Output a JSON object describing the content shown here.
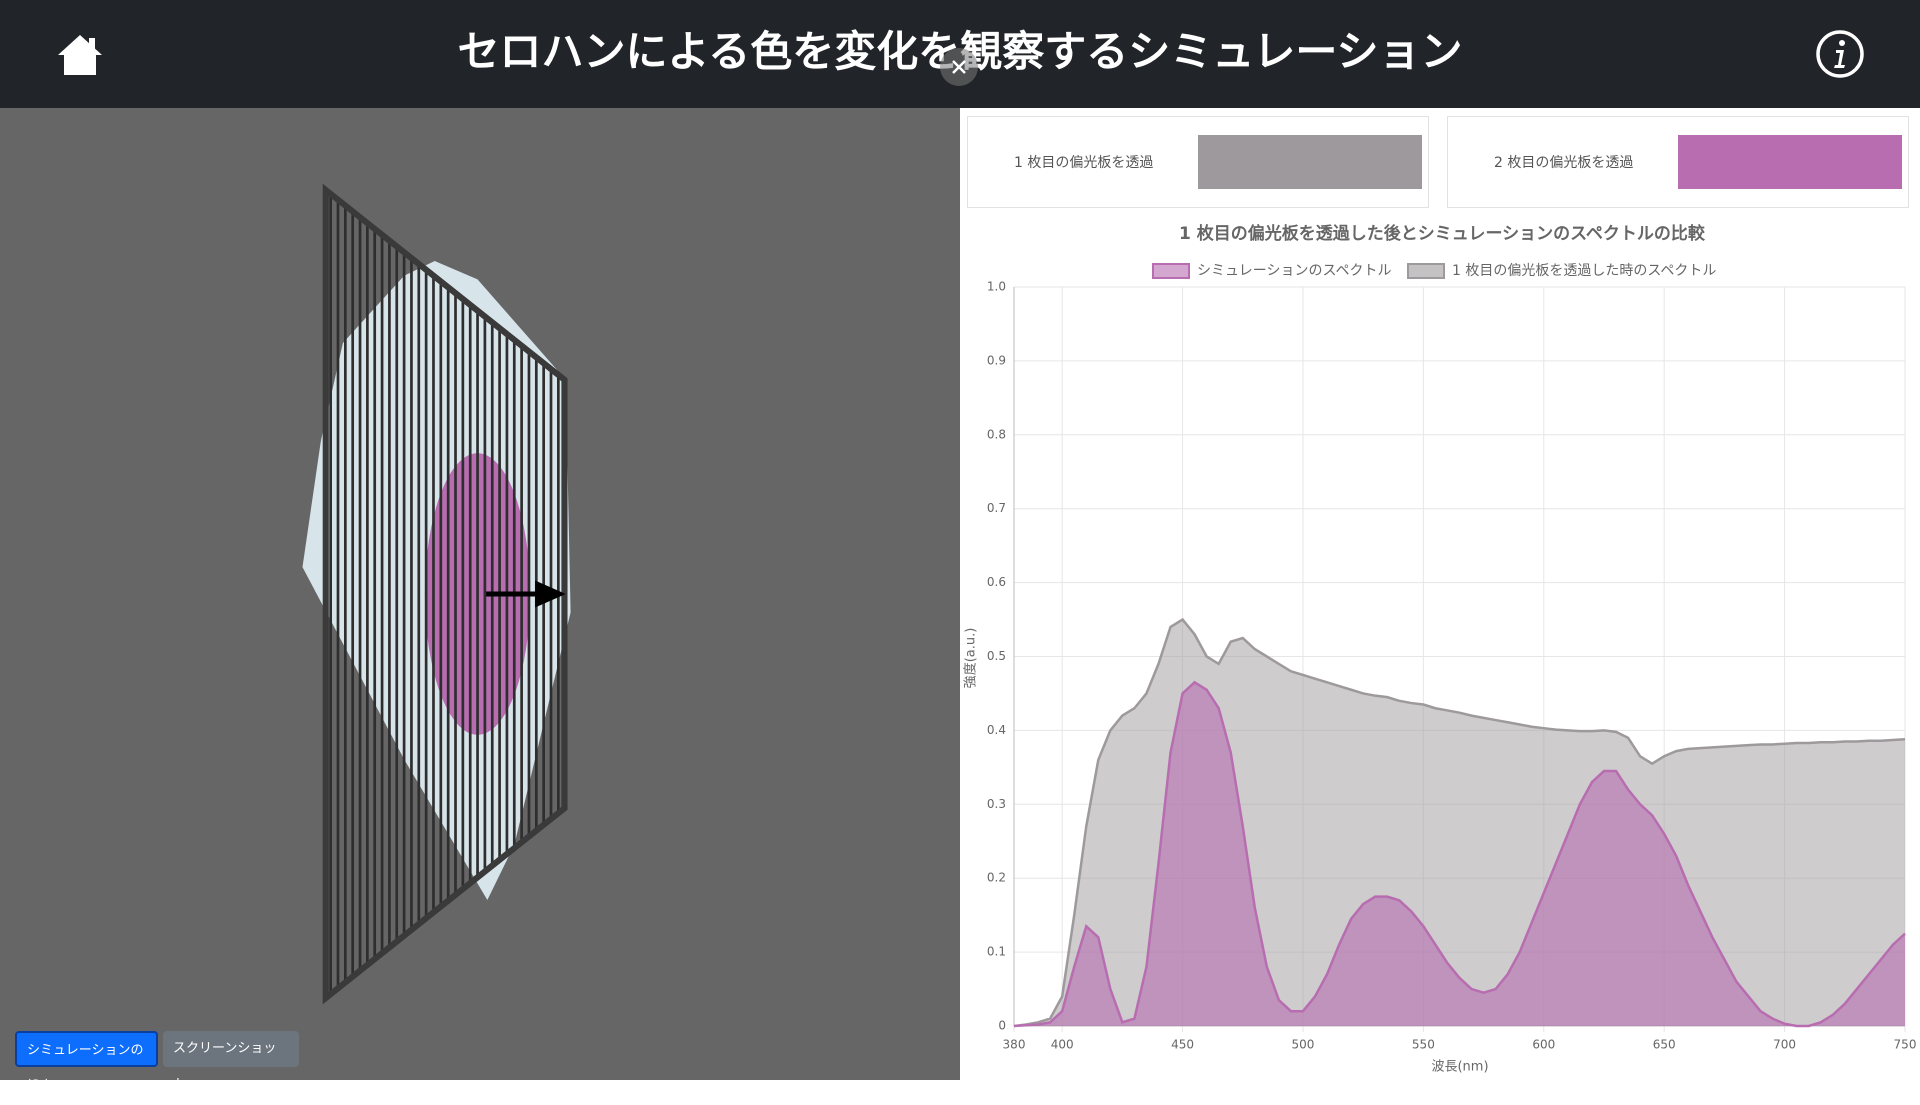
{
  "header": {
    "title": "セロハンによる色を変化を観察するシミュレーション"
  },
  "swatches": [
    {
      "label": "1 枚目の偏光板を透過",
      "color": "#9e999c"
    },
    {
      "label": "2 枚目の偏光板を透過",
      "color": "#b76db0"
    }
  ],
  "buttons": {
    "settings": "シミュレーションの設定",
    "screenshot": "スクリーンショット"
  },
  "chart_data": {
    "type": "area",
    "title": "1 枚目の偏光板を透過した後とシミュレーションのスペクトルの比較",
    "x_label": "波長(nm)",
    "y_label": "強度(a.u.)",
    "x": [
      380,
      385,
      390,
      395,
      400,
      405,
      410,
      415,
      420,
      425,
      430,
      435,
      440,
      445,
      450,
      455,
      460,
      465,
      470,
      475,
      480,
      485,
      490,
      495,
      500,
      505,
      510,
      515,
      520,
      525,
      530,
      535,
      540,
      545,
      550,
      555,
      560,
      565,
      570,
      575,
      580,
      585,
      590,
      595,
      600,
      605,
      610,
      615,
      620,
      625,
      630,
      635,
      640,
      645,
      650,
      655,
      660,
      665,
      670,
      675,
      680,
      685,
      690,
      695,
      700,
      705,
      710,
      715,
      720,
      725,
      730,
      735,
      740,
      745,
      750
    ],
    "xlim": [
      380,
      750
    ],
    "xticks": [
      380,
      400,
      450,
      500,
      550,
      600,
      650,
      700,
      750
    ],
    "ylim": [
      0,
      1
    ],
    "yticks": [
      0,
      0.1,
      0.2,
      0.3,
      0.4,
      0.5,
      0.6,
      0.7,
      0.8,
      0.9,
      {
        "value": 1,
        "label": "1.0"
      }
    ],
    "grid": true,
    "series": [
      {
        "name": "1 枚目の偏光板を透過した時のスペクトル",
        "color": "#9e999c",
        "values": [
          0,
          0.002,
          0.005,
          0.01,
          0.04,
          0.15,
          0.27,
          0.36,
          0.4,
          0.42,
          0.43,
          0.45,
          0.49,
          0.54,
          0.55,
          0.53,
          0.5,
          0.49,
          0.52,
          0.525,
          0.51,
          0.5,
          0.49,
          0.48,
          0.475,
          0.47,
          0.465,
          0.46,
          0.455,
          0.45,
          0.447,
          0.445,
          0.44,
          0.437,
          0.435,
          0.43,
          0.427,
          0.424,
          0.42,
          0.417,
          0.414,
          0.411,
          0.408,
          0.405,
          0.403,
          0.401,
          0.4,
          0.399,
          0.399,
          0.4,
          0.398,
          0.39,
          0.365,
          0.355,
          0.365,
          0.372,
          0.375,
          0.376,
          0.377,
          0.378,
          0.379,
          0.38,
          0.381,
          0.381,
          0.382,
          0.383,
          0.383,
          0.384,
          0.384,
          0.385,
          0.385,
          0.386,
          0.386,
          0.387,
          0.388
        ]
      },
      {
        "name": "シミュレーションのスペクトル",
        "color": "#b76db0",
        "values": [
          0,
          0.001,
          0.002,
          0.005,
          0.02,
          0.08,
          0.135,
          0.12,
          0.05,
          0.005,
          0.01,
          0.08,
          0.22,
          0.37,
          0.45,
          0.465,
          0.455,
          0.43,
          0.37,
          0.27,
          0.16,
          0.08,
          0.035,
          0.02,
          0.02,
          0.04,
          0.07,
          0.11,
          0.145,
          0.165,
          0.175,
          0.175,
          0.17,
          0.155,
          0.135,
          0.11,
          0.085,
          0.065,
          0.05,
          0.045,
          0.05,
          0.07,
          0.1,
          0.14,
          0.18,
          0.22,
          0.26,
          0.3,
          0.33,
          0.345,
          0.345,
          0.32,
          0.3,
          0.285,
          0.26,
          0.23,
          0.19,
          0.155,
          0.12,
          0.09,
          0.06,
          0.04,
          0.02,
          0.01,
          0.003,
          0,
          0,
          0.005,
          0.015,
          0.03,
          0.05,
          0.07,
          0.09,
          0.11,
          0.125
        ]
      }
    ]
  }
}
